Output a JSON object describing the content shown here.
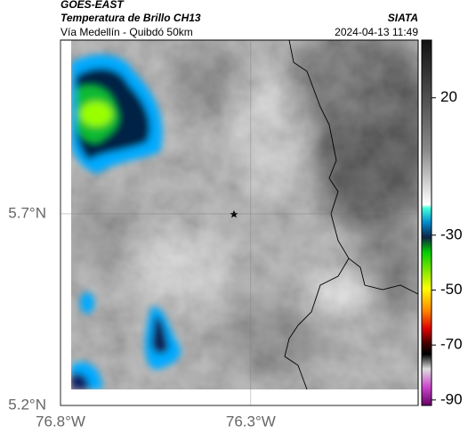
{
  "header": {
    "source": "GOES-EAST",
    "title": "Temperatura de Brillo CH13",
    "subtitle": "Vía Medellín - Quibdó 50km",
    "agency": "SIATA",
    "timestamp": "2024-04-13 11:49"
  },
  "map": {
    "lon_range": [
      -76.8,
      -75.86
    ],
    "lat_range": [
      5.2,
      6.153
    ],
    "lon_ticks": [
      {
        "value": -76.8,
        "label": "76.8°W"
      },
      {
        "value": -76.3,
        "label": "76.3°W"
      }
    ],
    "lat_ticks": [
      {
        "value": 5.7,
        "label": "5.7°N"
      },
      {
        "value": 5.2,
        "label": "5.2°N"
      }
    ]
  },
  "colorbar": {
    "range": [
      -92,
      41
    ],
    "ticks": [
      20,
      -30,
      -50,
      -70,
      -90
    ]
  }
}
